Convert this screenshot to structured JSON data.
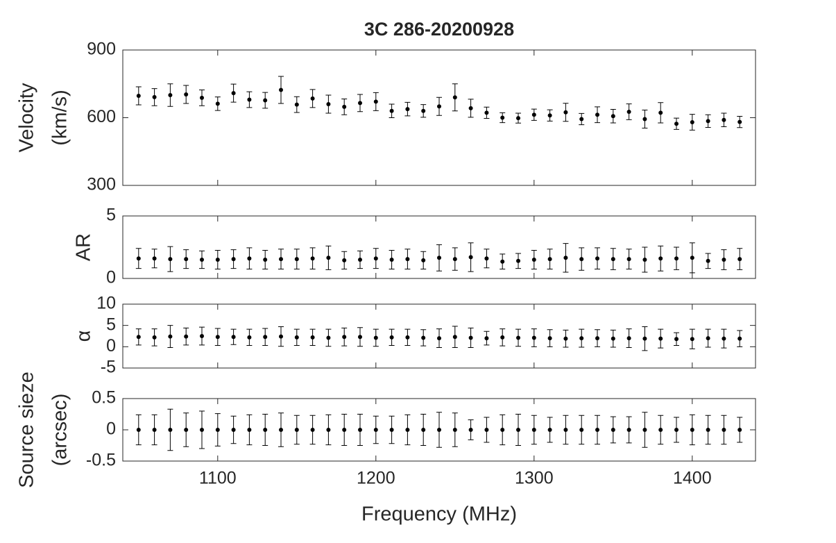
{
  "chart_data": [
    {
      "type": "scatter",
      "title": "3C 286-20200928",
      "ylabel": [
        "Velocity",
        "(km/s)"
      ],
      "color": "#000000",
      "x": [
        1050,
        1060,
        1070,
        1080,
        1090,
        1100,
        1110,
        1120,
        1130,
        1140,
        1150,
        1160,
        1170,
        1180,
        1190,
        1200,
        1210,
        1220,
        1230,
        1240,
        1250,
        1260,
        1270,
        1280,
        1290,
        1300,
        1310,
        1320,
        1330,
        1340,
        1350,
        1360,
        1370,
        1380,
        1390,
        1400,
        1410,
        1420,
        1430
      ],
      "values": [
        697,
        691,
        700,
        703,
        688,
        662,
        709,
        680,
        677,
        723,
        658,
        685,
        660,
        648,
        665,
        671,
        630,
        638,
        630,
        650,
        690,
        642,
        622,
        600,
        598,
        613,
        610,
        624,
        594,
        613,
        607,
        626,
        594,
        622,
        573,
        580,
        585,
        590,
        581
      ],
      "errors": [
        40,
        38,
        50,
        40,
        35,
        30,
        40,
        35,
        35,
        60,
        35,
        40,
        40,
        35,
        38,
        40,
        30,
        30,
        28,
        40,
        60,
        40,
        25,
        22,
        22,
        25,
        25,
        40,
        25,
        35,
        30,
        35,
        40,
        45,
        25,
        35,
        28,
        30,
        25
      ],
      "xlim": [
        1040,
        1440
      ],
      "xticks": [
        1100,
        1200,
        1300,
        1400
      ],
      "ylim": [
        300,
        900
      ],
      "yticks": [
        300,
        600,
        900
      ]
    },
    {
      "type": "scatter",
      "ylabel": [
        "AR"
      ],
      "color": "#000000",
      "x": [
        1050,
        1060,
        1070,
        1080,
        1090,
        1100,
        1110,
        1120,
        1130,
        1140,
        1150,
        1160,
        1170,
        1180,
        1190,
        1200,
        1210,
        1220,
        1230,
        1240,
        1250,
        1260,
        1270,
        1280,
        1290,
        1300,
        1310,
        1320,
        1330,
        1340,
        1350,
        1360,
        1370,
        1380,
        1390,
        1400,
        1410,
        1420,
        1430
      ],
      "values": [
        1.6,
        1.6,
        1.55,
        1.55,
        1.5,
        1.5,
        1.55,
        1.6,
        1.5,
        1.55,
        1.55,
        1.6,
        1.65,
        1.45,
        1.5,
        1.6,
        1.5,
        1.55,
        1.45,
        1.65,
        1.55,
        1.7,
        1.6,
        1.35,
        1.4,
        1.5,
        1.55,
        1.65,
        1.55,
        1.6,
        1.55,
        1.55,
        1.5,
        1.6,
        1.6,
        1.65,
        1.4,
        1.5,
        1.55
      ],
      "errors": [
        0.8,
        0.75,
        1.0,
        0.75,
        0.7,
        0.75,
        0.75,
        0.85,
        0.75,
        0.8,
        0.8,
        0.85,
        0.95,
        0.7,
        0.7,
        0.8,
        0.75,
        0.8,
        0.7,
        1.05,
        0.9,
        1.15,
        0.75,
        0.6,
        0.6,
        0.75,
        0.8,
        1.15,
        0.9,
        0.85,
        0.85,
        0.8,
        1.0,
        1.0,
        0.9,
        1.2,
        0.6,
        0.8,
        0.85
      ],
      "xlim": [
        1040,
        1440
      ],
      "xticks": [
        1100,
        1200,
        1300,
        1400
      ],
      "ylim": [
        0,
        5
      ],
      "yticks": [
        0,
        5
      ]
    },
    {
      "type": "scatter",
      "ylabel": [
        "α"
      ],
      "color": "#000000",
      "x": [
        1050,
        1060,
        1070,
        1080,
        1090,
        1100,
        1110,
        1120,
        1130,
        1140,
        1150,
        1160,
        1170,
        1180,
        1190,
        1200,
        1210,
        1220,
        1230,
        1240,
        1250,
        1260,
        1270,
        1280,
        1290,
        1300,
        1310,
        1320,
        1330,
        1340,
        1350,
        1360,
        1370,
        1380,
        1390,
        1400,
        1410,
        1420,
        1430
      ],
      "values": [
        2.3,
        2.2,
        2.4,
        2.4,
        2.5,
        2.3,
        2.3,
        2.2,
        2.3,
        2.4,
        2.2,
        2.2,
        2.1,
        2.3,
        2.3,
        2.1,
        2.2,
        2.2,
        2.1,
        2.0,
        2.3,
        2.1,
        2.0,
        2.2,
        2.1,
        2.1,
        2.0,
        1.9,
        2.0,
        2.0,
        1.9,
        2.0,
        1.9,
        1.9,
        1.8,
        1.8,
        2.0,
        1.9,
        1.9
      ],
      "errors": [
        1.9,
        2.0,
        2.6,
        2.0,
        2.1,
        2.0,
        1.8,
        1.9,
        2.0,
        2.3,
        1.9,
        1.9,
        2.0,
        2.1,
        2.2,
        2.0,
        1.9,
        1.9,
        1.9,
        2.2,
        2.5,
        2.3,
        1.6,
        2.0,
        2.0,
        2.1,
        2.0,
        2.0,
        2.1,
        2.0,
        2.0,
        2.2,
        2.8,
        2.2,
        1.5,
        2.3,
        2.1,
        2.2,
        1.9
      ],
      "xlim": [
        1040,
        1440
      ],
      "xticks": [
        1100,
        1200,
        1300,
        1400
      ],
      "ylim": [
        -5,
        10
      ],
      "yticks": [
        -5,
        0,
        5,
        10
      ]
    },
    {
      "type": "scatter",
      "ylabel": [
        "Source sieze",
        "(arcsec)"
      ],
      "xlabel": "Frequency (MHz)",
      "color": "#000000",
      "x": [
        1050,
        1060,
        1070,
        1080,
        1090,
        1100,
        1110,
        1120,
        1130,
        1140,
        1150,
        1160,
        1170,
        1180,
        1190,
        1200,
        1210,
        1220,
        1230,
        1240,
        1250,
        1260,
        1270,
        1280,
        1290,
        1300,
        1310,
        1320,
        1330,
        1340,
        1350,
        1360,
        1370,
        1380,
        1390,
        1400,
        1410,
        1420,
        1430
      ],
      "values": [
        0,
        0,
        0,
        0,
        0,
        0,
        0,
        0,
        0,
        0,
        0,
        0,
        0,
        0,
        0,
        0,
        0,
        0,
        0,
        0,
        0,
        0,
        0,
        0,
        0,
        0,
        0,
        0,
        0,
        0,
        0,
        0,
        0,
        0,
        0,
        0,
        0,
        0,
        0
      ],
      "errors": [
        0.24,
        0.24,
        0.33,
        0.27,
        0.3,
        0.26,
        0.22,
        0.24,
        0.25,
        0.27,
        0.23,
        0.23,
        0.24,
        0.25,
        0.25,
        0.22,
        0.22,
        0.24,
        0.25,
        0.28,
        0.27,
        0.16,
        0.2,
        0.24,
        0.25,
        0.23,
        0.2,
        0.23,
        0.23,
        0.23,
        0.21,
        0.21,
        0.28,
        0.23,
        0.2,
        0.24,
        0.23,
        0.23,
        0.2
      ],
      "xlim": [
        1040,
        1440
      ],
      "xticks": [
        1100,
        1200,
        1300,
        1400
      ],
      "ylim": [
        -0.5,
        0.5
      ],
      "yticks": [
        -0.5,
        0,
        0.5
      ]
    }
  ]
}
